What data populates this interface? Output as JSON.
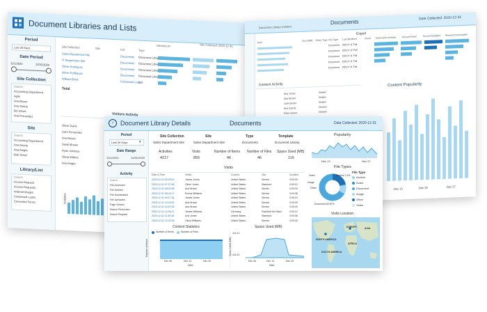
{
  "colors": {
    "accent": "#4aa8dd",
    "dark": "#1e6fb5",
    "header_bg": "#d9eefb"
  },
  "back": {
    "title": "Document Libraries and Lists",
    "period_label": "Period",
    "period_value": "Last 30 Days",
    "date_period_label": "Date Period",
    "date_start": "11/1/2020",
    "date_end": "12/31/2020",
    "site_collection_label": "Site Collection",
    "site_collection_items": [
      "Search",
      "Accounting Department",
      "Agile",
      "Ana Brown",
      "Ana Garcia",
      "Bin Grisel",
      "Ana Fernandez"
    ],
    "site_label": "Site",
    "site_items": [
      "Search",
      "Accounting Department",
      "Ana Garcia",
      "Ana Knight",
      "Bart Grisel"
    ],
    "library_label": "Library/List",
    "library_items": [
      "Search",
      "Access Request",
      "Access Requests",
      "Android Images",
      "Composed Looks",
      "Converted Forms"
    ],
    "table_headers": [
      "Site Collection",
      "Site",
      "List",
      "Type",
      "Library/List"
    ],
    "rows": [
      [
        "Sales Department Site",
        "Documents",
        "Document Library"
      ],
      [
        "IT Department Site",
        "Documents",
        "Document Library"
      ],
      [
        "Oliver Rodriguez",
        "Documents",
        "Document Library"
      ],
      [
        "Oliver Rodriguez",
        "Documents",
        "Document Library"
      ],
      [
        "William Bolck",
        "Composed Look",
        "List"
      ]
    ],
    "total": "Total",
    "visitors_activity": "Visitors Activity",
    "visitors": [
      "Oliver Davis",
      "Liam Fernandez",
      "Ana Brown",
      "Sarah Brown",
      "Ryan Johnson",
      "Olivia Wilkins",
      "Ana Knight"
    ],
    "sd": "Site Collected: 2020-12-31",
    "activities": "Activities"
  },
  "right": {
    "title": "Documents",
    "subtitle": "Document Library Content",
    "date_collected": "Date Collected: 2020-12-31",
    "export_label": "Export",
    "content_activity": "Content Activity",
    "content_popularity": "Content Popularity",
    "columns": [
      "Item",
      "Size (MB)",
      "Entry Type",
      "File Type",
      "Last Modified",
      "Views",
      "Extensions",
      "Activity",
      "Recent Read",
      "Recent Modified",
      "Recent Downloaded"
    ],
    "item_rows": [
      [
        "Document",
        "DOCX 11 Fall"
      ],
      [
        "Document",
        "DOCX 12 Fall"
      ],
      [
        "Document",
        "DOCX 11 Fall"
      ],
      [
        "Document",
        "DOCX 11 Fall"
      ],
      [
        "Document",
        "DOCX 11 Fall"
      ]
    ],
    "activity_rows": [
      "Ana Jones",
      "Ana Brown",
      "Liam Green",
      "Ana Garcia",
      "Peter Green"
    ],
    "activity_values": [
      "Visited",
      "Visited",
      "Visited",
      "Viewed",
      "Viewed"
    ],
    "axis": [
      "Dec 13",
      "Dec 20",
      "Dec 27"
    ]
  },
  "front": {
    "title": "Document Library Details",
    "center_title": "Documents",
    "date_collected": "Data Collected: 2020-12-31",
    "period_label": "Period",
    "period_value": "Last 30 Days",
    "date_range_label": "Date Range",
    "date_start": "11/2/2020",
    "date_end": "12/31/2020",
    "activity_label": "Activity",
    "activity_items": [
      "Search",
      "File Accessed",
      "File Deleted",
      "File Downloaded",
      "File Uploaded",
      "Page Viewed",
      "Search Performed",
      "Search Request"
    ],
    "info_headers": [
      "Site Collection",
      "Site",
      "Type",
      "Template"
    ],
    "info_values": [
      "Sales Department Site",
      "Sales Department Site",
      "Documents",
      "Document Library"
    ],
    "kpi_labels": [
      "Activities",
      "Visits",
      "Number of Items",
      "Number of Files",
      "Space Used (MB)"
    ],
    "kpi_values": [
      "4217",
      "855",
      "46",
      "46",
      "116"
    ],
    "popularity_label": "Popularity",
    "popularity_axis": [
      "Dec 13",
      "Dec 27"
    ],
    "visits_label": "Visits",
    "visits_headers": [
      "Date & Time",
      "Visitor",
      "Country",
      "City",
      "Duration"
    ],
    "visits_rows": [
      [
        "2020-12-31 05:05:10",
        "James Jones",
        "United States",
        "Denver",
        "0:00:09"
      ],
      [
        "2020-12-31 07:07:45",
        "Oliver Jones",
        "United States",
        "Stamford",
        "0:00:13"
      ],
      [
        "2020-12-31 08:00:38",
        "Ana Brown",
        "United States",
        "Denver",
        "0:00:09"
      ],
      [
        "2020-12-31 08:44:17",
        "Emma Williams",
        "United States",
        "Denver",
        "0:00:08"
      ],
      [
        "2020-12-31 09:17:44",
        "James Jones",
        "United States",
        "Denver",
        "0:00:13"
      ],
      [
        "2020-12-31 10:40:52",
        "Ana Brown",
        "United States",
        "Denver",
        "0:00:09"
      ],
      [
        "2020-12-31 10:57:05",
        "Ana Brown",
        "United States",
        "Denver",
        "0:00:09"
      ],
      [
        "2020-12-31 11:05:21",
        "James Williams",
        "Germany",
        "Frankfurt Am Main",
        "0:00:13"
      ],
      [
        "2020-12-31 11:40:15",
        "Ana Jones",
        "United States",
        "Stamford",
        "0:00:08"
      ],
      [
        "2020-12-31 12:02:18",
        "Olivia Williams",
        "United States",
        "Denver",
        "0:00:18"
      ]
    ],
    "file_types_label": "File Types",
    "file_type_legend_title": "File Type",
    "file_type_items": [
      "Archive",
      "Audio",
      "Document",
      "Image",
      "Other",
      "Video"
    ],
    "file_type_colors": [
      "#8fd0f2",
      "#2f8fd0",
      "#4aa8dd",
      "#a9d7f0",
      "#1e6fb5",
      "#c9e7f7"
    ],
    "donut_labels": [
      "Video",
      "Other",
      "Document 60.67%",
      "Archive 2.3%",
      "Image"
    ],
    "visits_location_label": "Visits Location",
    "map_labels": [
      "NORTH AMERICA",
      "EUROPE",
      "ASIA",
      "AFRICA",
      "SOUTH AMERICA"
    ],
    "content_stats_label": "Content Statistics",
    "content_stats_legend": [
      "Number of Items",
      "Number of Files"
    ],
    "content_stats_ylabel": "Number of Items",
    "content_stats_axis": [
      "Dec 06",
      "Dec 13",
      "Dec 20"
    ],
    "content_stats_xlabel": "Date",
    "space_used_label": "Space Used (MB)",
    "space_used_ylabel": "Space Used (MB)",
    "space_used_ticks": [
      "116.12",
      "116.10"
    ],
    "space_used_axis": [
      "Dec 06",
      "Dec 13",
      "Dec 20"
    ],
    "space_used_xlabel": "Date"
  }
}
